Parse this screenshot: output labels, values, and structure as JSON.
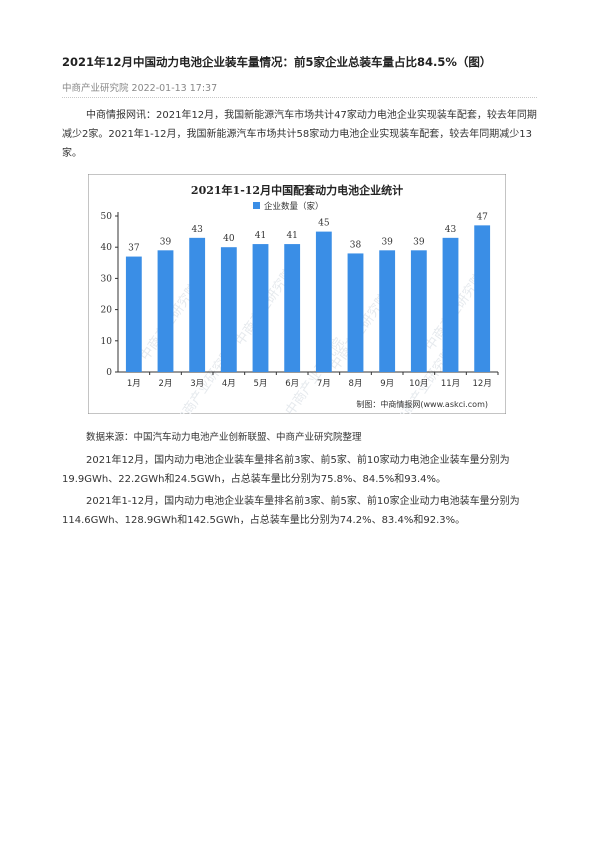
{
  "article": {
    "title": "2021年12月中国动力电池企业装车量情况：前5家企业总装车量占比84.5%（图）",
    "source_line": "中商产业研究院 2022-01-13 17:37",
    "para1": "中商情报网讯：2021年12月，我国新能源汽车市场共计47家动力电池企业实现装车配套，较去年同期减少2家。2021年1-12月，我国新能源汽车市场共计58家动力电池企业实现装车配套，较去年同期减少13家。",
    "data_source": "数据来源：中国汽车动力电池产业创新联盟、中商产业研究院整理",
    "para2": "2021年12月，国内动力电池企业装车量排名前3家、前5家、前10家动力电池企业装车量分别为19.9GWh、22.2GWh和24.5GWh，占总装车量比分别为75.8%、84.5%和93.4%。",
    "para3": "2021年1-12月，国内动力电池企业装车量排名前3家、前5家、前10家企业动力电池装车量分别为114.6GWh、128.9GWh和142.5GWh，占总装车量比分别为74.2%、83.4%和92.3%。"
  },
  "chart_data": {
    "type": "bar",
    "title": "2021年1-12月中国配套动力电池企业统计",
    "categories": [
      "1月",
      "2月",
      "3月",
      "4月",
      "5月",
      "6月",
      "7月",
      "8月",
      "9月",
      "10月",
      "11月",
      "12月"
    ],
    "series": [
      {
        "name": "企业数量（家）",
        "values": [
          37,
          39,
          43,
          40,
          41,
          41,
          45,
          38,
          39,
          39,
          43,
          47
        ]
      }
    ],
    "yticks": [
      "0",
      "10",
      "20",
      "30",
      "40",
      "50"
    ],
    "ylim": [
      0,
      50
    ],
    "legend_placement": "top",
    "credit": "制图：中商情报网(www.askci.com)",
    "watermark": "中商产业研究院",
    "bar_color": "#3a8ee6"
  }
}
